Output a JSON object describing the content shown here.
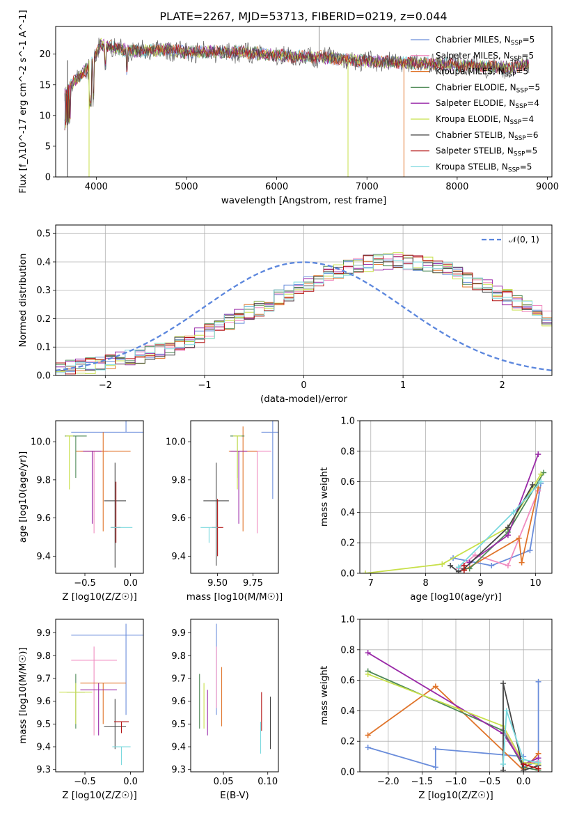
{
  "figure": {
    "title": "PLATE=2267, MJD=53713, FIBERID=0219, z=0.044"
  },
  "series_styles": [
    {
      "name": "Chabrier MILES",
      "nssp": "5",
      "color": "#6a8ddb"
    },
    {
      "name": "Salpeter MILES",
      "nssp": "5",
      "color": "#f08cc0"
    },
    {
      "name": "Kroupa MILES",
      "nssp": "5",
      "color": "#e0742a"
    },
    {
      "name": "Chabrier ELODIE",
      "nssp": "5",
      "color": "#4f8a57"
    },
    {
      "name": "Salpeter ELODIE",
      "nssp": "4",
      "color": "#9a2aa8"
    },
    {
      "name": "Kroupa ELODIE",
      "nssp": "4",
      "color": "#c8e04a"
    },
    {
      "name": "Chabrier STELIB",
      "nssp": "6",
      "color": "#444444"
    },
    {
      "name": "Salpeter STELIB",
      "nssp": "5",
      "color": "#b31414"
    },
    {
      "name": "Kroupa STELIB",
      "nssp": "5",
      "color": "#7ad8de"
    }
  ],
  "chart_data": [
    {
      "id": "spectrum",
      "type": "line",
      "xlabel": "wavelength [Angstrom, rest frame]",
      "ylabel": "Flux [f_λ10^-17 erg cm^-2 s^-1 A^-1]",
      "xlim": [
        3550,
        9050
      ],
      "ylim": [
        0,
        24.5
      ],
      "xticks": [
        4000,
        5000,
        6000,
        7000,
        8000,
        9000
      ],
      "yticks": [
        0,
        5,
        10,
        15,
        20
      ],
      "grid": false,
      "legend": "right",
      "continuum": {
        "x": [
          3650,
          3750,
          3850,
          3950,
          4050,
          4200,
          4400,
          4600,
          4800,
          5000,
          5300,
          5600,
          5900,
          6200,
          6500,
          6800,
          7100,
          7400,
          7700,
          8000,
          8300,
          8600,
          8800
        ],
        "y": [
          13.5,
          15.5,
          16.8,
          18.5,
          21.5,
          21.0,
          20.5,
          20.6,
          20.7,
          20.3,
          20.4,
          20.3,
          20.0,
          19.6,
          19.5,
          19.0,
          18.8,
          18.6,
          18.4,
          18.2,
          18.0,
          17.7,
          18.5
        ]
      }
    },
    {
      "id": "residuals",
      "type": "area",
      "xlabel": "(data-model)/error",
      "ylabel": "Normed distribution",
      "xlim": [
        -2.5,
        2.5
      ],
      "ylim": [
        0,
        0.53
      ],
      "xticks": [
        -2,
        -1,
        0,
        1,
        2
      ],
      "yticks": [
        0.0,
        0.1,
        0.2,
        0.3,
        0.4,
        0.5
      ],
      "grid": true,
      "legend": "top-right",
      "gaussian_label": "𝒩(0, 1)",
      "gaussian_color": "#5b86dd",
      "bin_width": 0.1,
      "bin_start": -2.5,
      "envelope": [
        0.025,
        0.028,
        0.031,
        0.035,
        0.04,
        0.046,
        0.053,
        0.061,
        0.069,
        0.078,
        0.089,
        0.1,
        0.112,
        0.126,
        0.14,
        0.155,
        0.17,
        0.186,
        0.203,
        0.22,
        0.238,
        0.256,
        0.273,
        0.291,
        0.308,
        0.325,
        0.34,
        0.355,
        0.368,
        0.379,
        0.389,
        0.396,
        0.401,
        0.404,
        0.404,
        0.401,
        0.396,
        0.389,
        0.379,
        0.368,
        0.355,
        0.34,
        0.325,
        0.308,
        0.291,
        0.273,
        0.256,
        0.238,
        0.22,
        0.203
      ]
    },
    {
      "id": "age-vs-Z",
      "type": "scatter",
      "xlabel": "Z [log10(Z/Z☉)]",
      "ylabel": "age  [log10(age/yr)]",
      "xlim": [
        -0.82,
        0.14
      ],
      "ylim": [
        9.31,
        10.11
      ],
      "xticks": [
        -0.5,
        0.0
      ],
      "yticks": [
        9.4,
        9.6,
        9.8,
        10.0
      ],
      "grid": false,
      "points": [
        {
          "x": -0.05,
          "y": 10.05,
          "xerr": 0.6,
          "yerr": [
            0.0,
            0.06
          ]
        },
        {
          "x": -0.4,
          "y": 9.95,
          "xerr": 0.15,
          "yerr": [
            0.43,
            0.0
          ]
        },
        {
          "x": -0.3,
          "y": 9.95,
          "xerr": 0.3,
          "yerr": [
            0.42,
            0.1
          ]
        },
        {
          "x": -0.6,
          "y": 10.03,
          "xerr": 0.12,
          "yerr": [
            0.22,
            0.0
          ]
        },
        {
          "x": -0.42,
          "y": 9.95,
          "xerr": 0.1,
          "yerr": [
            0.38,
            0.0
          ]
        },
        {
          "x": -0.67,
          "y": 10.03,
          "xerr": 0.04,
          "yerr": [
            0.28,
            0.0
          ]
        },
        {
          "x": -0.17,
          "y": 9.69,
          "xerr": 0.12,
          "yerr": [
            0.35,
            0.2
          ]
        },
        {
          "x": -0.16,
          "y": 9.55,
          "xerr": 0.05,
          "yerr": [
            0.08,
            0.24
          ]
        },
        {
          "x": -0.1,
          "y": 9.55,
          "xerr": 0.12,
          "yerr": [
            0.0,
            0.0
          ]
        }
      ]
    },
    {
      "id": "age-vs-mass",
      "type": "scatter",
      "xlabel": "mass [log10(M/M☉)]",
      "ylabel": "",
      "xlim": [
        9.31,
        9.93
      ],
      "ylim": [
        9.31,
        10.11
      ],
      "xticks": [
        9.5,
        9.75
      ],
      "yticks": [
        9.4,
        9.6,
        9.8,
        10.0
      ],
      "grid": false,
      "points": [
        {
          "x": 9.89,
          "y": 10.05,
          "xerr": 0.08,
          "yerr": [
            0.35,
            0.06
          ]
        },
        {
          "x": 9.78,
          "y": 9.95,
          "xerr": 0.1,
          "yerr": [
            0.43,
            0.0
          ]
        },
        {
          "x": 9.68,
          "y": 9.95,
          "xerr": 0.1,
          "yerr": [
            0.42,
            0.13
          ]
        },
        {
          "x": 9.64,
          "y": 10.03,
          "xerr": 0.05,
          "yerr": [
            0.22,
            0.0
          ]
        },
        {
          "x": 9.65,
          "y": 9.95,
          "xerr": 0.06,
          "yerr": [
            0.38,
            0.0
          ]
        },
        {
          "x": 9.64,
          "y": 10.03,
          "xerr": 0.03,
          "yerr": [
            0.28,
            0.0
          ]
        },
        {
          "x": 9.49,
          "y": 9.69,
          "xerr": 0.09,
          "yerr": [
            0.34,
            0.2
          ]
        },
        {
          "x": 9.5,
          "y": 9.55,
          "xerr": 0.04,
          "yerr": [
            0.15,
            0.15
          ]
        },
        {
          "x": 9.44,
          "y": 9.55,
          "xerr": 0.06,
          "yerr": [
            0.08,
            0.0
          ]
        }
      ]
    },
    {
      "id": "massweight-vs-age",
      "type": "line",
      "xlabel": "age  [log10(age/yr)]",
      "ylabel": "mass weight",
      "xlim": [
        6.8,
        10.3
      ],
      "ylim": [
        0,
        1.0
      ],
      "xticks": [
        7,
        8,
        9,
        10
      ],
      "yticks": [
        0.0,
        0.2,
        0.4,
        0.6,
        0.8,
        1.0
      ],
      "grid": true,
      "series": [
        {
          "x": [
            8.5,
            9.2,
            9.9,
            10.1
          ],
          "y": [
            0.1,
            0.05,
            0.15,
            0.59
          ]
        },
        {
          "x": [
            8.6,
            8.9,
            9.5,
            10.05
          ],
          "y": [
            0.03,
            0.12,
            0.05,
            0.54
          ]
        },
        {
          "x": [
            8.7,
            9.7,
            9.75,
            10.05
          ],
          "y": [
            0.02,
            0.23,
            0.07,
            0.56
          ]
        },
        {
          "x": [
            8.8,
            9.5,
            10.15
          ],
          "y": [
            0.03,
            0.27,
            0.66
          ]
        },
        {
          "x": [
            8.8,
            9.5,
            10.05
          ],
          "y": [
            0.07,
            0.25,
            0.78
          ]
        },
        {
          "x": [
            6.9,
            8.3,
            9.5,
            10.1
          ],
          "y": [
            0.0,
            0.06,
            0.3,
            0.65
          ]
        },
        {
          "x": [
            8.45,
            8.6,
            8.7,
            9.5,
            9.95
          ],
          "y": [
            0.05,
            0.01,
            0.03,
            0.3,
            0.58
          ]
        },
        {
          "x": [
            8.7,
            8.7
          ],
          "y": [
            0.02,
            0.05
          ]
        },
        {
          "x": [
            8.6,
            9.6,
            10.1
          ],
          "y": [
            0.04,
            0.4,
            0.6
          ]
        }
      ]
    },
    {
      "id": "mass-vs-Z",
      "type": "scatter",
      "xlabel": "Z [log10(Z/Z☉)]",
      "ylabel": "mass [log10(M/M☉)]",
      "xlim": [
        -0.82,
        0.14
      ],
      "ylim": [
        9.29,
        9.96
      ],
      "xticks": [
        -0.5,
        0.0
      ],
      "yticks": [
        9.3,
        9.4,
        9.5,
        9.6,
        9.7,
        9.8,
        9.9
      ],
      "grid": false,
      "points": [
        {
          "x": -0.05,
          "y": 9.89,
          "xerr": 0.6,
          "yerr": [
            0.35,
            0.05
          ]
        },
        {
          "x": -0.4,
          "y": 9.78,
          "xerr": 0.25,
          "yerr": [
            0.33,
            0.06
          ]
        },
        {
          "x": -0.3,
          "y": 9.68,
          "xerr": 0.25,
          "yerr": [
            0.18,
            0.0
          ]
        },
        {
          "x": -0.6,
          "y": 9.64,
          "xerr": 0.1,
          "yerr": [
            0.16,
            0.08
          ]
        },
        {
          "x": -0.35,
          "y": 9.65,
          "xerr": 0.2,
          "yerr": [
            0.2,
            0.03
          ]
        },
        {
          "x": -0.6,
          "y": 9.64,
          "xerr": 0.18,
          "yerr": [
            0.14,
            0.04
          ]
        },
        {
          "x": -0.17,
          "y": 9.49,
          "xerr": 0.12,
          "yerr": [
            0.1,
            0.12
          ]
        },
        {
          "x": -0.1,
          "y": 9.51,
          "xerr": 0.08,
          "yerr": [
            0.05,
            0.0
          ]
        },
        {
          "x": -0.1,
          "y": 9.4,
          "xerr": 0.1,
          "yerr": [
            0.08,
            0.0
          ]
        }
      ]
    },
    {
      "id": "mass-vs-EBV",
      "type": "scatter",
      "xlabel": "E(B-V)",
      "ylabel": "",
      "xlim": [
        0.013,
        0.112
      ],
      "ylim": [
        9.29,
        9.96
      ],
      "xticks": [
        0.05,
        0.1
      ],
      "yticks": [
        9.3,
        9.4,
        9.5,
        9.6,
        9.7,
        9.8,
        9.9
      ],
      "grid": false,
      "points": [
        {
          "x": 0.042,
          "y": 9.74,
          "xerr": 0,
          "yerr": [
            0.2,
            0.2
          ]
        },
        {
          "x": 0.042,
          "y": 9.72,
          "xerr": 0,
          "yerr": [
            0.15,
            0.12
          ]
        },
        {
          "x": 0.048,
          "y": 9.62,
          "xerr": 0,
          "yerr": [
            0.13,
            0.13
          ]
        },
        {
          "x": 0.023,
          "y": 9.62,
          "xerr": 0,
          "yerr": [
            0.14,
            0.1
          ]
        },
        {
          "x": 0.032,
          "y": 9.55,
          "xerr": 0,
          "yerr": [
            0.1,
            0.1
          ]
        },
        {
          "x": 0.028,
          "y": 9.58,
          "xerr": 0,
          "yerr": [
            0.1,
            0.1
          ]
        },
        {
          "x": 0.103,
          "y": 9.51,
          "xerr": 0,
          "yerr": [
            0.12,
            0.11
          ]
        },
        {
          "x": 0.093,
          "y": 9.55,
          "xerr": 0,
          "yerr": [
            0.08,
            0.09
          ]
        },
        {
          "x": 0.092,
          "y": 9.44,
          "xerr": 0,
          "yerr": [
            0.07,
            0.07
          ]
        }
      ]
    },
    {
      "id": "massweight-vs-Z",
      "type": "line",
      "xlabel": "Z [log10(Z/Z☉)]",
      "ylabel": "mass weight",
      "xlim": [
        -2.42,
        0.42
      ],
      "ylim": [
        0,
        1.0
      ],
      "xticks": [
        -2.0,
        -1.5,
        -1.0,
        -0.5,
        0.0
      ],
      "yticks": [
        0.0,
        0.2,
        0.4,
        0.6,
        0.8,
        1.0
      ],
      "grid": true,
      "series": [
        {
          "x": [
            -2.3,
            -1.3,
            -1.3,
            0.0,
            0.0,
            0.22,
            0.22
          ],
          "y": [
            0.16,
            0.03,
            0.15,
            0.1,
            0.03,
            0.07,
            0.59
          ]
        },
        {
          "x": [
            -0.3,
            0.0,
            0.22
          ],
          "y": [
            0.28,
            0.05,
            0.07
          ]
        },
        {
          "x": [
            -2.3,
            -1.3,
            0.0,
            0.22
          ],
          "y": [
            0.24,
            0.56,
            0.01,
            0.12
          ]
        },
        {
          "x": [
            -2.3,
            -0.3,
            0.0,
            0.22
          ],
          "y": [
            0.66,
            0.27,
            0.03,
            0.01
          ]
        },
        {
          "x": [
            -2.3,
            -0.3,
            0.0,
            0.22
          ],
          "y": [
            0.78,
            0.25,
            0.05,
            0.09
          ]
        },
        {
          "x": [
            -2.3,
            -0.3,
            0.0,
            0.22
          ],
          "y": [
            0.64,
            0.3,
            0.06,
            0.05
          ]
        },
        {
          "x": [
            -0.3,
            -0.3,
            0.0,
            0.22
          ],
          "y": [
            0.01,
            0.58,
            0.01,
            0.04
          ]
        },
        {
          "x": [
            0.0,
            0.22
          ],
          "y": [
            0.05,
            0.02
          ]
        },
        {
          "x": [
            -0.3,
            -0.25,
            0.0,
            0.22
          ],
          "y": [
            0.05,
            0.4,
            0.08,
            0.06
          ]
        }
      ]
    }
  ]
}
